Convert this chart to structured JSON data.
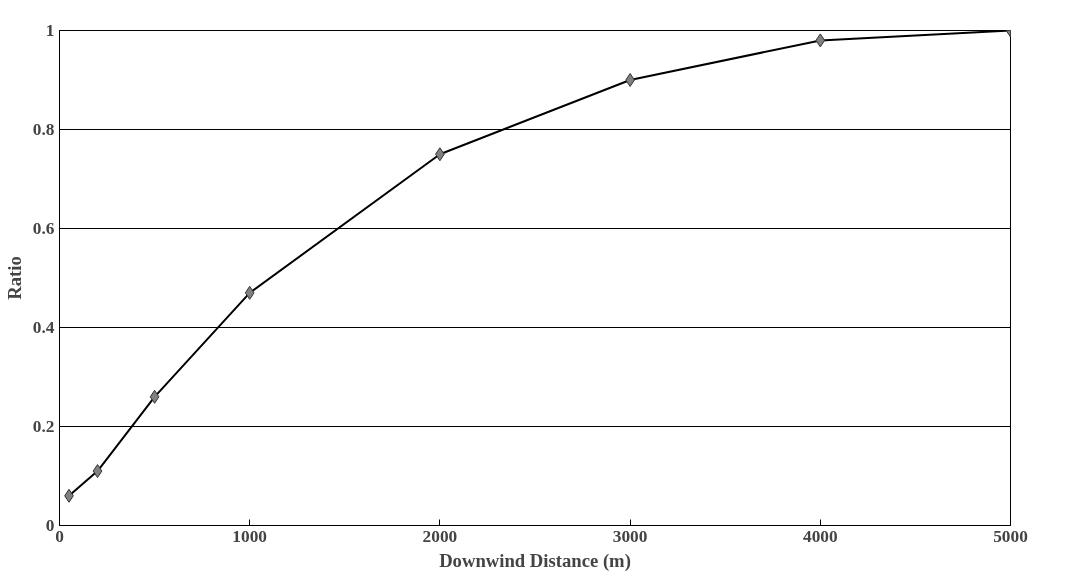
{
  "chart_data": {
    "type": "line",
    "xlabel": "Downwind Distance (m)",
    "ylabel": "Ratio",
    "x": [
      50,
      200,
      500,
      1000,
      2000,
      3000,
      4000,
      5000
    ],
    "series": [
      {
        "color": "#000000",
        "values": [
          0.06,
          0.11,
          0.26,
          0.47,
          0.75,
          0.9,
          0.98,
          1.0
        ]
      }
    ],
    "xlim": [
      0,
      5000
    ],
    "xticks": [
      0,
      1000,
      2000,
      3000,
      4000,
      5000
    ],
    "ylim": [
      0,
      1
    ],
    "yticks": [
      0,
      0.2,
      0.4,
      0.6,
      0.8,
      1
    ],
    "grid": "y",
    "marker": "diamond",
    "line_style": "solid"
  }
}
